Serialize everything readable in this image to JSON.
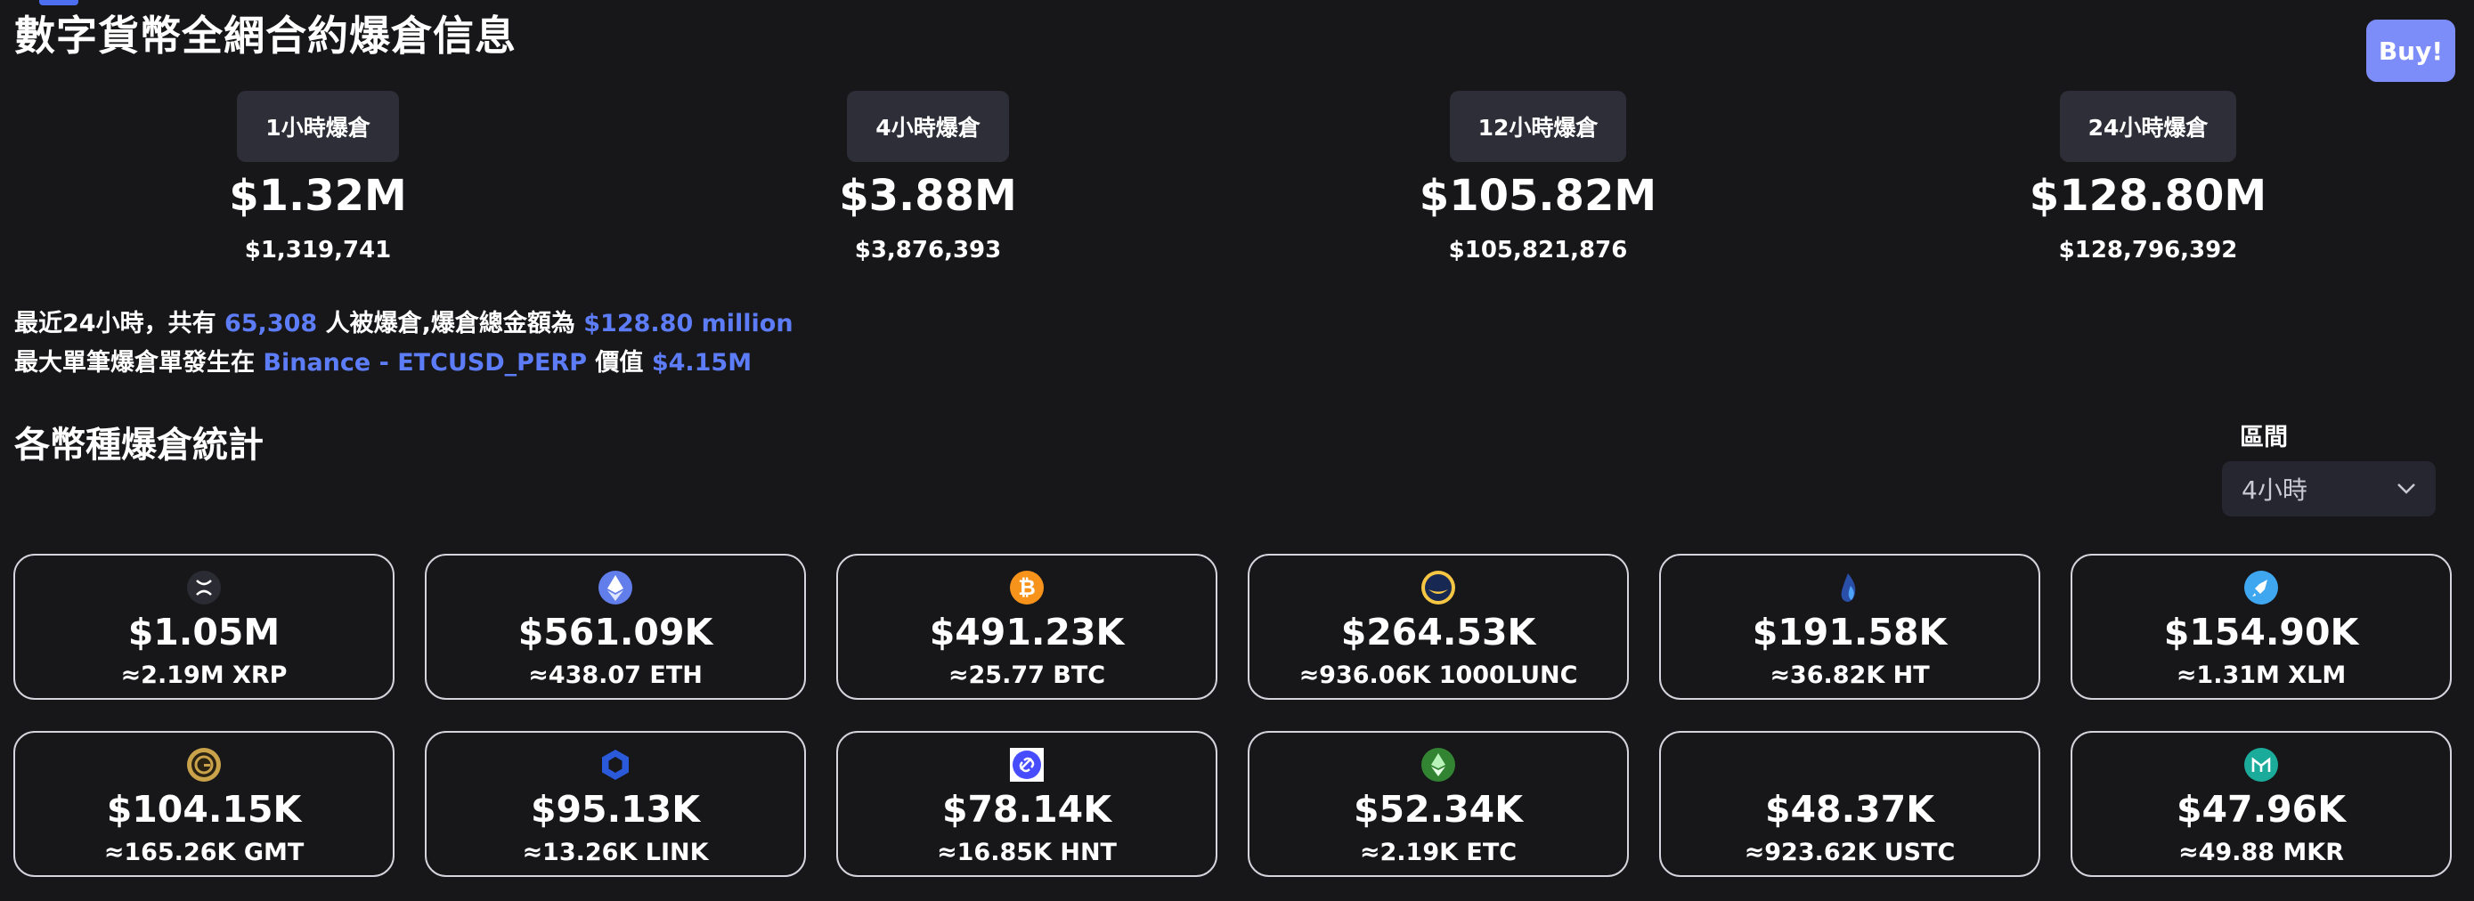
{
  "page": {
    "title": "數字貨幣全網合約爆倉信息",
    "buy_label": "Buy!",
    "accent_color": "#5d7cf7"
  },
  "periods": [
    {
      "label": "1小時爆倉",
      "amount": "$1.32M",
      "exact": "$1,319,741"
    },
    {
      "label": "4小時爆倉",
      "amount": "$3.88M",
      "exact": "$3,876,393"
    },
    {
      "label": "12小時爆倉",
      "amount": "$105.82M",
      "exact": "$105,821,876"
    },
    {
      "label": "24小時爆倉",
      "amount": "$128.80M",
      "exact": "$128,796,392"
    }
  ],
  "summary": {
    "line1_prefix": "最近24小時，共有",
    "people_count": "65,308",
    "line1_middle": "人被爆倉,爆倉總金額為",
    "total_amount": "$128.80 million",
    "line2_prefix": "最大單筆爆倉單發生在",
    "largest_order": "Binance - ETCUSD_PERP",
    "line2_middle": "價值",
    "largest_value": "$4.15M"
  },
  "section": {
    "title": "各幣種爆倉統計",
    "range_label": "區間",
    "range_value": "4小時"
  },
  "coins": [
    {
      "usd": "$1.05M",
      "amount": "≈2.19M XRP",
      "icon": "xrp-icon",
      "color": "#2b2b33"
    },
    {
      "usd": "$561.09K",
      "amount": "≈438.07 ETH",
      "icon": "eth-icon",
      "color": "#627eea"
    },
    {
      "usd": "$491.23K",
      "amount": "≈25.77 BTC",
      "icon": "btc-icon",
      "color": "#f7931a"
    },
    {
      "usd": "$264.53K",
      "amount": "≈936.06K 1000LUNC",
      "icon": "lunc-icon",
      "color": "#172852"
    },
    {
      "usd": "$191.58K",
      "amount": "≈36.82K HT",
      "icon": "ht-icon",
      "color": "#2a4fa8"
    },
    {
      "usd": "$154.90K",
      "amount": "≈1.31M XLM",
      "icon": "xlm-icon",
      "color": "#3fa7f0"
    },
    {
      "usd": "$104.15K",
      "amount": "≈165.26K GMT",
      "icon": "gmt-icon",
      "color": "#c9a24a"
    },
    {
      "usd": "$95.13K",
      "amount": "≈13.26K LINK",
      "icon": "link-icon",
      "color": "#2a5ada"
    },
    {
      "usd": "$78.14K",
      "amount": "≈16.85K HNT",
      "icon": "hnt-icon",
      "color": "#474dff"
    },
    {
      "usd": "$52.34K",
      "amount": "≈2.19K ETC",
      "icon": "etc-icon",
      "color": "#328332"
    },
    {
      "usd": "$48.37K",
      "amount": "≈923.62K USTC",
      "icon": "ustc-icon",
      "color": "#5493f7"
    },
    {
      "usd": "$47.96K",
      "amount": "≈49.88 MKR",
      "icon": "mkr-icon",
      "color": "#1aab9b"
    }
  ]
}
